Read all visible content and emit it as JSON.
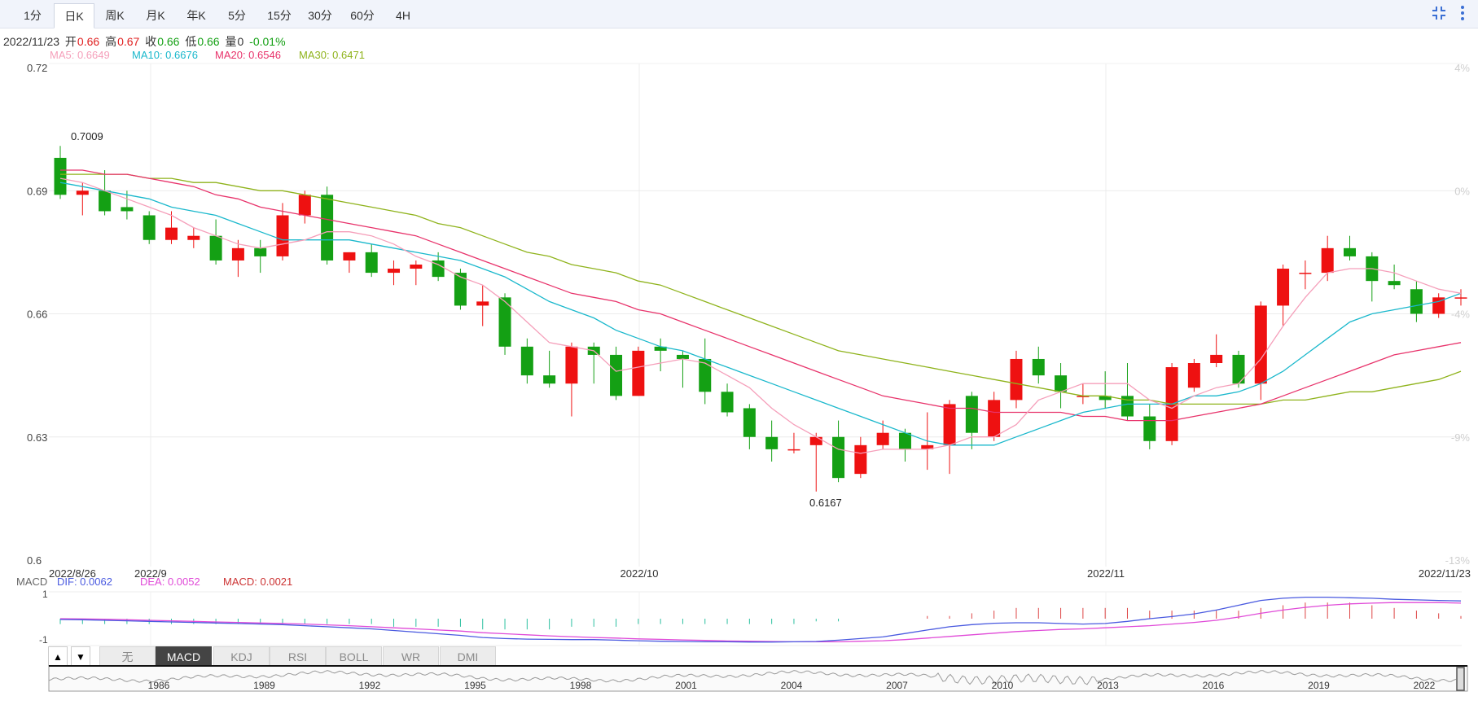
{
  "period_tabs": [
    {
      "label": "1分",
      "active": false
    },
    {
      "label": "日K",
      "active": true
    },
    {
      "label": "周K",
      "active": false
    },
    {
      "label": "月K",
      "active": false
    },
    {
      "label": "年K",
      "active": false
    },
    {
      "label": "5分",
      "active": false
    },
    {
      "label": "15分",
      "active": false
    },
    {
      "label": "30分",
      "active": false
    },
    {
      "label": "60分",
      "active": false
    },
    {
      "label": "4H",
      "active": false
    }
  ],
  "toolbar": {
    "collapse_icon": "collapse-icon",
    "more_icon": "more-vertical-icon"
  },
  "quote": {
    "date": "2022/11/23",
    "open_label": "开",
    "open": "0.66",
    "high_label": "高",
    "high": "0.67",
    "close_label": "收",
    "close": "0.66",
    "low_label": "低",
    "low": "0.66",
    "volume_label": "量",
    "volume": "0",
    "change": "-0.01%"
  },
  "ma": [
    {
      "label": "MA5: 0.6649",
      "color": "#f59fba"
    },
    {
      "label": "MA10: 0.6676",
      "color": "#1ab8cc"
    },
    {
      "label": "MA20: 0.6546",
      "color": "#e8336b"
    },
    {
      "label": "MA30: 0.6471",
      "color": "#8fb31c"
    }
  ],
  "macd": {
    "title": "MACD",
    "dif": "DIF: 0.0062",
    "dea": "DEA: 0.0052",
    "macd": "MACD: 0.0021",
    "dif_color": "#4a5ae0",
    "dea_color": "#e04ad8",
    "macd_color": "#cc3333",
    "y_ticks": [
      "1",
      "-1"
    ]
  },
  "indicator_tabs": [
    {
      "label": "无",
      "active": false
    },
    {
      "label": "MACD",
      "active": true
    },
    {
      "label": "KDJ",
      "active": false
    },
    {
      "label": "RSI",
      "active": false
    },
    {
      "label": "BOLL",
      "active": false
    },
    {
      "label": "WR",
      "active": false
    },
    {
      "label": "DMI",
      "active": false
    }
  ],
  "arrows": {
    "up": "▲",
    "down": "▼"
  },
  "colors": {
    "up": "#ee1111",
    "down": "#14a014"
  },
  "chart_data": {
    "type": "candlestick",
    "y_ticks": [
      "0.72",
      "0.69",
      "0.66",
      "0.63",
      "0.6"
    ],
    "ylim": [
      0.6,
      0.72
    ],
    "pct_ticks": [
      "4%",
      "0%",
      "-4%",
      "-9%",
      "-13%"
    ],
    "x_labels": [
      "2022/8/26",
      "2022/9",
      "2022/10",
      "2022/11",
      "2022/11/23"
    ],
    "annotations": {
      "max": "0.7009",
      "min": "0.6167"
    },
    "candles": [
      {
        "o": 0.698,
        "h": 0.7009,
        "l": 0.688,
        "c": 0.689
      },
      {
        "o": 0.689,
        "h": 0.692,
        "l": 0.684,
        "c": 0.69
      },
      {
        "o": 0.69,
        "h": 0.695,
        "l": 0.684,
        "c": 0.685
      },
      {
        "o": 0.686,
        "h": 0.69,
        "l": 0.683,
        "c": 0.685
      },
      {
        "o": 0.684,
        "h": 0.685,
        "l": 0.677,
        "c": 0.678
      },
      {
        "o": 0.678,
        "h": 0.685,
        "l": 0.677,
        "c": 0.681
      },
      {
        "o": 0.678,
        "h": 0.681,
        "l": 0.676,
        "c": 0.679
      },
      {
        "o": 0.679,
        "h": 0.683,
        "l": 0.672,
        "c": 0.673
      },
      {
        "o": 0.673,
        "h": 0.678,
        "l": 0.669,
        "c": 0.676
      },
      {
        "o": 0.676,
        "h": 0.678,
        "l": 0.67,
        "c": 0.674
      },
      {
        "o": 0.674,
        "h": 0.687,
        "l": 0.673,
        "c": 0.684
      },
      {
        "o": 0.684,
        "h": 0.69,
        "l": 0.682,
        "c": 0.689
      },
      {
        "o": 0.689,
        "h": 0.691,
        "l": 0.672,
        "c": 0.673
      },
      {
        "o": 0.673,
        "h": 0.675,
        "l": 0.67,
        "c": 0.675
      },
      {
        "o": 0.675,
        "h": 0.677,
        "l": 0.669,
        "c": 0.67
      },
      {
        "o": 0.67,
        "h": 0.673,
        "l": 0.667,
        "c": 0.671
      },
      {
        "o": 0.671,
        "h": 0.673,
        "l": 0.667,
        "c": 0.672
      },
      {
        "o": 0.673,
        "h": 0.675,
        "l": 0.668,
        "c": 0.669
      },
      {
        "o": 0.67,
        "h": 0.671,
        "l": 0.661,
        "c": 0.662
      },
      {
        "o": 0.662,
        "h": 0.667,
        "l": 0.657,
        "c": 0.663
      },
      {
        "o": 0.664,
        "h": 0.665,
        "l": 0.65,
        "c": 0.652
      },
      {
        "o": 0.652,
        "h": 0.654,
        "l": 0.643,
        "c": 0.645
      },
      {
        "o": 0.645,
        "h": 0.651,
        "l": 0.642,
        "c": 0.643
      },
      {
        "o": 0.643,
        "h": 0.653,
        "l": 0.635,
        "c": 0.652
      },
      {
        "o": 0.652,
        "h": 0.653,
        "l": 0.643,
        "c": 0.65
      },
      {
        "o": 0.65,
        "h": 0.652,
        "l": 0.639,
        "c": 0.64
      },
      {
        "o": 0.64,
        "h": 0.652,
        "l": 0.64,
        "c": 0.651
      },
      {
        "o": 0.652,
        "h": 0.654,
        "l": 0.646,
        "c": 0.651
      },
      {
        "o": 0.65,
        "h": 0.651,
        "l": 0.642,
        "c": 0.649
      },
      {
        "o": 0.649,
        "h": 0.654,
        "l": 0.638,
        "c": 0.641
      },
      {
        "o": 0.641,
        "h": 0.643,
        "l": 0.635,
        "c": 0.636
      },
      {
        "o": 0.637,
        "h": 0.638,
        "l": 0.627,
        "c": 0.63
      },
      {
        "o": 0.63,
        "h": 0.634,
        "l": 0.624,
        "c": 0.627
      },
      {
        "o": 0.627,
        "h": 0.631,
        "l": 0.626,
        "c": 0.627
      },
      {
        "o": 0.628,
        "h": 0.631,
        "l": 0.6167,
        "c": 0.63
      },
      {
        "o": 0.63,
        "h": 0.634,
        "l": 0.619,
        "c": 0.62
      },
      {
        "o": 0.621,
        "h": 0.63,
        "l": 0.62,
        "c": 0.628
      },
      {
        "o": 0.628,
        "h": 0.634,
        "l": 0.627,
        "c": 0.631
      },
      {
        "o": 0.631,
        "h": 0.632,
        "l": 0.624,
        "c": 0.627
      },
      {
        "o": 0.627,
        "h": 0.636,
        "l": 0.622,
        "c": 0.628
      },
      {
        "o": 0.628,
        "h": 0.639,
        "l": 0.621,
        "c": 0.638
      },
      {
        "o": 0.64,
        "h": 0.641,
        "l": 0.627,
        "c": 0.631
      },
      {
        "o": 0.63,
        "h": 0.641,
        "l": 0.629,
        "c": 0.639
      },
      {
        "o": 0.639,
        "h": 0.651,
        "l": 0.637,
        "c": 0.649
      },
      {
        "o": 0.649,
        "h": 0.652,
        "l": 0.643,
        "c": 0.645
      },
      {
        "o": 0.645,
        "h": 0.648,
        "l": 0.637,
        "c": 0.641
      },
      {
        "o": 0.64,
        "h": 0.643,
        "l": 0.638,
        "c": 0.64
      },
      {
        "o": 0.64,
        "h": 0.646,
        "l": 0.637,
        "c": 0.639
      },
      {
        "o": 0.64,
        "h": 0.648,
        "l": 0.634,
        "c": 0.635
      },
      {
        "o": 0.635,
        "h": 0.638,
        "l": 0.627,
        "c": 0.629
      },
      {
        "o": 0.629,
        "h": 0.648,
        "l": 0.628,
        "c": 0.647
      },
      {
        "o": 0.642,
        "h": 0.649,
        "l": 0.641,
        "c": 0.648
      },
      {
        "o": 0.648,
        "h": 0.655,
        "l": 0.647,
        "c": 0.65
      },
      {
        "o": 0.65,
        "h": 0.651,
        "l": 0.642,
        "c": 0.643
      },
      {
        "o": 0.643,
        "h": 0.663,
        "l": 0.639,
        "c": 0.662
      },
      {
        "o": 0.662,
        "h": 0.672,
        "l": 0.657,
        "c": 0.671
      },
      {
        "o": 0.67,
        "h": 0.673,
        "l": 0.666,
        "c": 0.67
      },
      {
        "o": 0.67,
        "h": 0.679,
        "l": 0.668,
        "c": 0.676
      },
      {
        "o": 0.676,
        "h": 0.679,
        "l": 0.673,
        "c": 0.674
      },
      {
        "o": 0.674,
        "h": 0.675,
        "l": 0.663,
        "c": 0.668
      },
      {
        "o": 0.668,
        "h": 0.672,
        "l": 0.666,
        "c": 0.667
      },
      {
        "o": 0.666,
        "h": 0.668,
        "l": 0.658,
        "c": 0.66
      },
      {
        "o": 0.66,
        "h": 0.665,
        "l": 0.659,
        "c": 0.664
      },
      {
        "o": 0.664,
        "h": 0.666,
        "l": 0.662,
        "c": 0.664
      }
    ],
    "ma5": [
      0.693,
      0.692,
      0.69,
      0.688,
      0.686,
      0.684,
      0.681,
      0.679,
      0.677,
      0.676,
      0.677,
      0.678,
      0.68,
      0.68,
      0.679,
      0.677,
      0.674,
      0.672,
      0.669,
      0.667,
      0.663,
      0.658,
      0.653,
      0.652,
      0.651,
      0.646,
      0.647,
      0.648,
      0.649,
      0.648,
      0.645,
      0.642,
      0.637,
      0.633,
      0.63,
      0.627,
      0.626,
      0.627,
      0.627,
      0.627,
      0.628,
      0.63,
      0.63,
      0.633,
      0.639,
      0.641,
      0.643,
      0.643,
      0.643,
      0.639,
      0.637,
      0.64,
      0.642,
      0.643,
      0.649,
      0.657,
      0.664,
      0.67,
      0.671,
      0.671,
      0.67,
      0.668,
      0.666,
      0.665
    ],
    "ma10": [
      0.692,
      0.691,
      0.69,
      0.689,
      0.688,
      0.686,
      0.685,
      0.684,
      0.682,
      0.68,
      0.678,
      0.678,
      0.678,
      0.678,
      0.677,
      0.676,
      0.675,
      0.674,
      0.673,
      0.671,
      0.669,
      0.666,
      0.663,
      0.661,
      0.659,
      0.656,
      0.654,
      0.652,
      0.651,
      0.649,
      0.647,
      0.645,
      0.643,
      0.641,
      0.639,
      0.637,
      0.635,
      0.633,
      0.631,
      0.629,
      0.628,
      0.628,
      0.628,
      0.63,
      0.632,
      0.634,
      0.636,
      0.637,
      0.638,
      0.638,
      0.638,
      0.64,
      0.64,
      0.641,
      0.643,
      0.646,
      0.65,
      0.654,
      0.658,
      0.66,
      0.661,
      0.662,
      0.663,
      0.665
    ],
    "ma20": [
      0.695,
      0.695,
      0.694,
      0.694,
      0.693,
      0.692,
      0.691,
      0.689,
      0.688,
      0.686,
      0.685,
      0.684,
      0.683,
      0.682,
      0.681,
      0.68,
      0.679,
      0.677,
      0.675,
      0.673,
      0.671,
      0.669,
      0.667,
      0.665,
      0.664,
      0.663,
      0.661,
      0.66,
      0.658,
      0.656,
      0.654,
      0.652,
      0.65,
      0.648,
      0.646,
      0.644,
      0.642,
      0.64,
      0.639,
      0.638,
      0.637,
      0.637,
      0.636,
      0.636,
      0.636,
      0.636,
      0.635,
      0.635,
      0.634,
      0.634,
      0.634,
      0.635,
      0.636,
      0.637,
      0.638,
      0.64,
      0.642,
      0.644,
      0.646,
      0.648,
      0.65,
      0.651,
      0.652,
      0.653
    ],
    "ma30": [
      0.694,
      0.694,
      0.694,
      0.694,
      0.693,
      0.693,
      0.692,
      0.692,
      0.691,
      0.69,
      0.69,
      0.689,
      0.688,
      0.687,
      0.686,
      0.685,
      0.684,
      0.682,
      0.681,
      0.679,
      0.677,
      0.675,
      0.674,
      0.672,
      0.671,
      0.67,
      0.668,
      0.667,
      0.665,
      0.663,
      0.661,
      0.659,
      0.657,
      0.655,
      0.653,
      0.651,
      0.65,
      0.649,
      0.648,
      0.647,
      0.646,
      0.645,
      0.644,
      0.643,
      0.642,
      0.641,
      0.64,
      0.64,
      0.639,
      0.639,
      0.638,
      0.638,
      0.638,
      0.638,
      0.638,
      0.639,
      0.639,
      0.64,
      0.641,
      0.641,
      0.642,
      0.643,
      0.644,
      0.646
    ],
    "macd_hist": [
      -0.2,
      -0.2,
      -0.2,
      -0.2,
      -0.2,
      -0.2,
      -0.2,
      -0.2,
      -0.2,
      -0.2,
      -0.2,
      -0.2,
      -0.2,
      -0.2,
      -0.2,
      -0.3,
      -0.3,
      -0.3,
      -0.3,
      -0.4,
      -0.4,
      -0.4,
      -0.4,
      -0.3,
      -0.3,
      -0.3,
      -0.2,
      -0.2,
      -0.2,
      -0.2,
      -0.2,
      -0.2,
      -0.2,
      -0.2,
      -0.1,
      -0.1,
      0,
      0,
      0,
      0.1,
      0.1,
      0.2,
      0.3,
      0.4,
      0.4,
      0.4,
      0.4,
      0.4,
      0.4,
      0.3,
      0.3,
      0.3,
      0.3,
      0.3,
      0.4,
      0.5,
      0.6,
      0.6,
      0.6,
      0.5,
      0.4,
      0.3,
      0.2,
      0.1
    ],
    "dif": [
      -0.03,
      -0.04,
      -0.06,
      -0.08,
      -0.1,
      -0.12,
      -0.14,
      -0.16,
      -0.18,
      -0.2,
      -0.22,
      -0.26,
      -0.3,
      -0.34,
      -0.38,
      -0.44,
      -0.5,
      -0.56,
      -0.62,
      -0.7,
      -0.74,
      -0.76,
      -0.77,
      -0.78,
      -0.78,
      -0.8,
      -0.82,
      -0.84,
      -0.85,
      -0.86,
      -0.86,
      -0.87,
      -0.87,
      -0.86,
      -0.85,
      -0.8,
      -0.74,
      -0.68,
      -0.55,
      -0.42,
      -0.3,
      -0.22,
      -0.17,
      -0.15,
      -0.15,
      -0.18,
      -0.2,
      -0.18,
      -0.1,
      0.0,
      0.08,
      0.18,
      0.32,
      0.5,
      0.68,
      0.76,
      0.8,
      0.8,
      0.78,
      0.76,
      0.72,
      0.7,
      0.68,
      0.66
    ],
    "dea": [
      0.0,
      -0.01,
      -0.02,
      -0.04,
      -0.06,
      -0.08,
      -0.1,
      -0.12,
      -0.14,
      -0.16,
      -0.18,
      -0.2,
      -0.23,
      -0.26,
      -0.3,
      -0.34,
      -0.38,
      -0.42,
      -0.46,
      -0.52,
      -0.56,
      -0.6,
      -0.64,
      -0.67,
      -0.7,
      -0.72,
      -0.75,
      -0.77,
      -0.79,
      -0.81,
      -0.83,
      -0.84,
      -0.85,
      -0.86,
      -0.86,
      -0.86,
      -0.84,
      -0.82,
      -0.78,
      -0.72,
      -0.66,
      -0.6,
      -0.54,
      -0.48,
      -0.44,
      -0.4,
      -0.38,
      -0.34,
      -0.3,
      -0.26,
      -0.2,
      -0.14,
      -0.06,
      0.06,
      0.2,
      0.32,
      0.42,
      0.5,
      0.55,
      0.58,
      0.6,
      0.6,
      0.6,
      0.58
    ]
  },
  "overview": {
    "year_labels": [
      "1986",
      "1989",
      "1992",
      "1995",
      "1998",
      "2001",
      "2004",
      "2007",
      "2010",
      "2013",
      "2016",
      "2019",
      "2022"
    ]
  }
}
